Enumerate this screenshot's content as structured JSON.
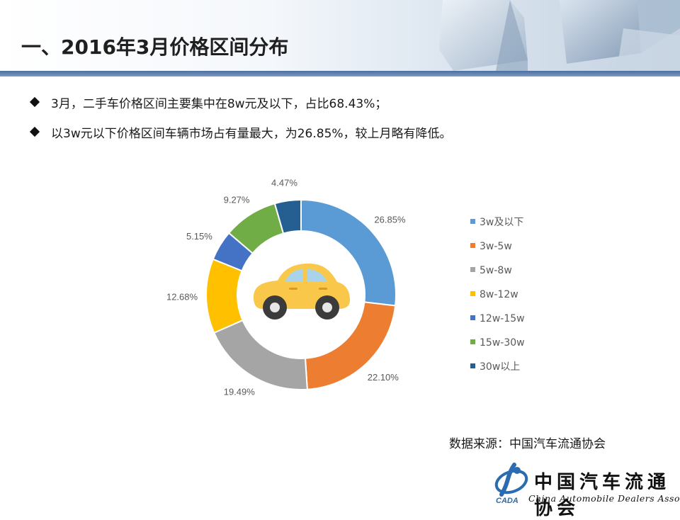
{
  "title": "一、2016年3月价格区间分布",
  "bullets": [
    "3月，二手车价格区间主要集中在8w元及以下，占比68.43%；",
    "以3w元以下价格区间车辆市场占有量最大，为26.85%，较上月略有降低。"
  ],
  "source": "数据来源：中国汽车流通协会",
  "logo": {
    "chinese": "中国汽车流通协会",
    "english": "China Automobile Dealers Association",
    "abbr": "CADA"
  },
  "chart_data": {
    "type": "pie",
    "donut": true,
    "categories": [
      "3w及以下",
      "3w-5w",
      "5w-8w",
      "8w-12w",
      "12w-15w",
      "15w-30w",
      "30w以上"
    ],
    "values": [
      26.85,
      22.1,
      19.49,
      12.68,
      5.15,
      9.27,
      4.47
    ],
    "value_labels": [
      "26.85%",
      "22.10%",
      "19.49%",
      "12.68%",
      "5.15%",
      "9.27%",
      "4.47%"
    ],
    "colors": [
      "#5b9bd5",
      "#ed7d31",
      "#a5a5a5",
      "#ffc000",
      "#4472c4",
      "#70ad47",
      "#255e91"
    ],
    "legend_position": "right",
    "center_icon": "car-icon"
  }
}
